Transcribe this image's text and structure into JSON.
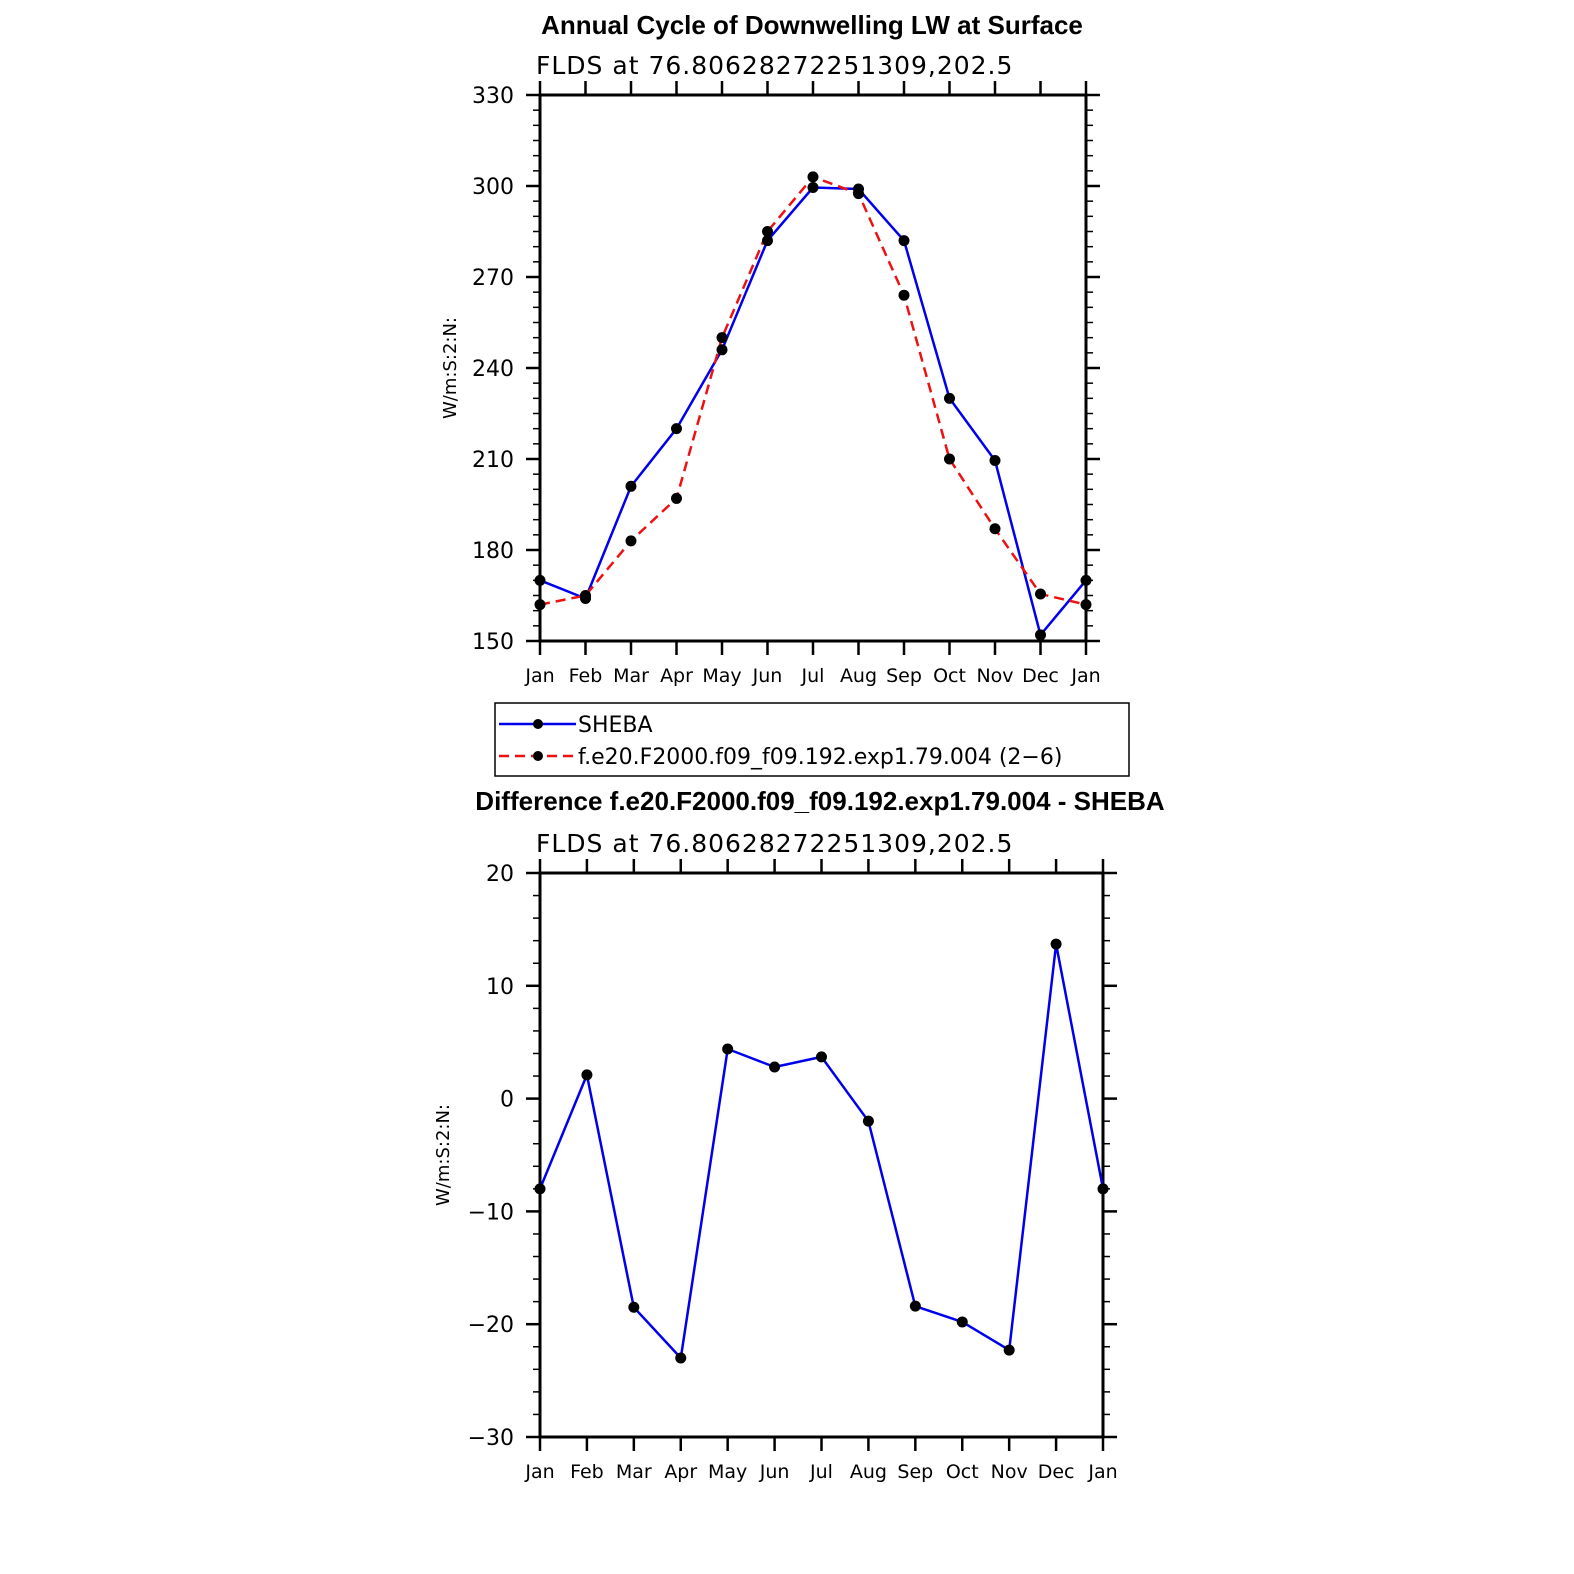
{
  "chart_data": [
    {
      "type": "line",
      "title": "Annual Cycle of Downwelling LW at Surface",
      "subtitle": "FLDS at 76.80628272251309,202.5",
      "ylabel": "W/m:S:2:N:",
      "categories": [
        "Jan",
        "Feb",
        "Mar",
        "Apr",
        "May",
        "Jun",
        "Jul",
        "Aug",
        "Sep",
        "Oct",
        "Nov",
        "Dec",
        "Jan"
      ],
      "ylim": [
        150,
        330
      ],
      "yticks": [
        "150",
        "180",
        "210",
        "240",
        "270",
        "300",
        "330"
      ],
      "series": [
        {
          "name": "SHEBA",
          "color": "#0000ee",
          "dash": "solid",
          "values": [
            170,
            164,
            201,
            220,
            246,
            282,
            299.5,
            299,
            282,
            230,
            209.5,
            152,
            170
          ]
        },
        {
          "name": "f.e20.F2000.f09_f09.192.exp1.79.004 (2−6)",
          "color": "#ee1111",
          "dash": "dashed",
          "values": [
            162,
            165,
            183,
            197,
            250,
            285,
            303,
            297.5,
            264,
            210,
            187,
            165.5,
            162
          ]
        }
      ],
      "legend": "below"
    },
    {
      "type": "line",
      "title": "Difference f.e20.F2000.f09_f09.192.exp1.79.004 - SHEBA",
      "subtitle": "FLDS at 76.80628272251309,202.5",
      "ylabel": "W/m:S:2:N:",
      "categories": [
        "Jan",
        "Feb",
        "Mar",
        "Apr",
        "May",
        "Jun",
        "Jul",
        "Aug",
        "Sep",
        "Oct",
        "Nov",
        "Dec",
        "Jan"
      ],
      "ylim": [
        -30,
        20
      ],
      "yticks": [
        "−30",
        "−20",
        "−10",
        "0",
        "10",
        "20"
      ],
      "series": [
        {
          "color": "#0000ee",
          "dash": "solid",
          "values": [
            -8,
            2.1,
            -18.5,
            -23,
            4.4,
            2.8,
            3.7,
            -2,
            -18.4,
            -19.8,
            -22.3,
            13.7,
            -8
          ]
        }
      ]
    }
  ]
}
